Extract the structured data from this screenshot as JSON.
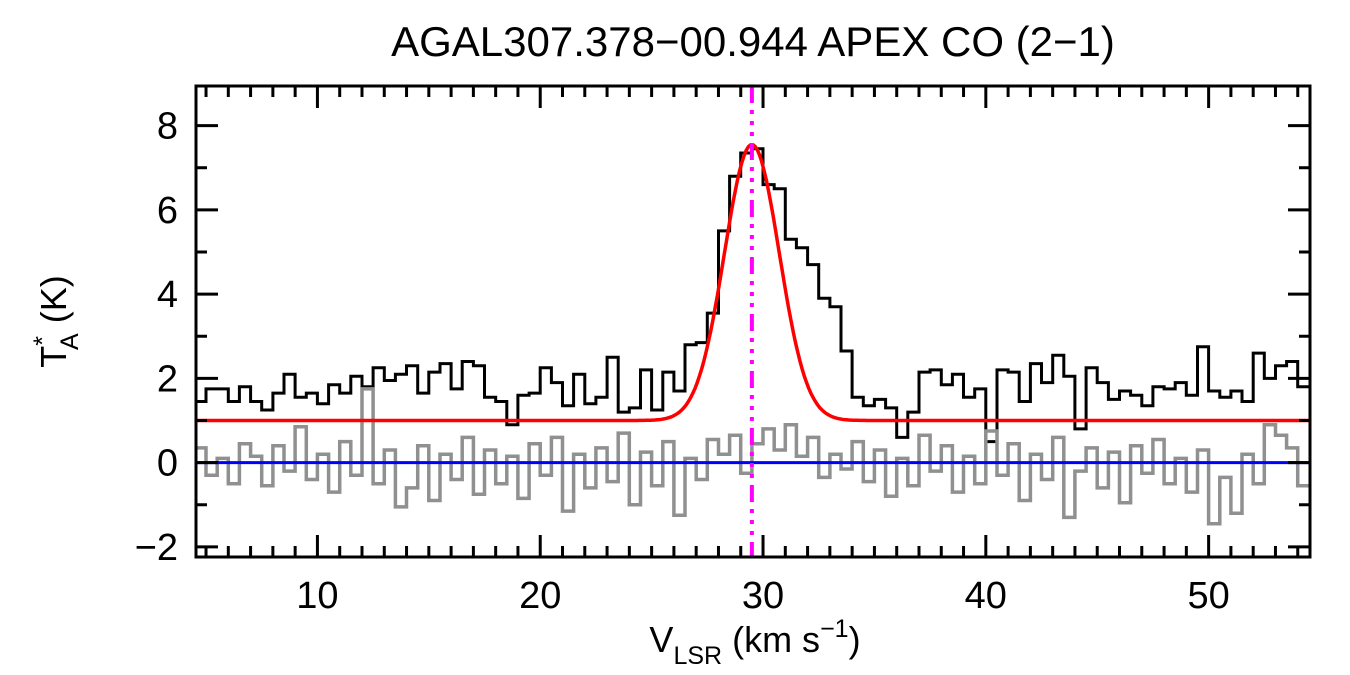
{
  "chart_data": {
    "type": "line",
    "title": "AGAL307.378−00.944  APEX CO (2−1)",
    "xlabel_parts": [
      {
        "t": "V"
      },
      {
        "t": "LSR",
        "sub": true
      },
      {
        "t": " (km s"
      },
      {
        "t": "−1",
        "sup": true
      },
      {
        "t": ")"
      }
    ],
    "ylabel_parts": [
      {
        "t": "T"
      },
      {
        "t": "*",
        "sup": true
      },
      {
        "t": "A",
        "sub": true,
        "dx": -14
      },
      {
        "t": " (K)"
      }
    ],
    "xlim": [
      4.55,
      54.55
    ],
    "ylim": [
      -2.24,
      8.94
    ],
    "x_major_ticks": [
      10,
      20,
      30,
      40,
      50
    ],
    "x_minor_step": 1,
    "y_major_ticks": [
      -2,
      0,
      2,
      4,
      6,
      8
    ],
    "y_minor_step": 1,
    "grid": "off",
    "legend": "none",
    "channel_width_kms": 0.5,
    "series": [
      {
        "name": "co21-spectrum",
        "color": "#000000",
        "style": "histogram",
        "line_width": 3,
        "x_start": 4.75,
        "dx": 0.5,
        "values": [
          1.45,
          1.75,
          1.75,
          1.45,
          1.8,
          1.45,
          1.25,
          1.65,
          2.1,
          1.55,
          1.65,
          1.4,
          1.85,
          1.65,
          2.05,
          1.8,
          2.25,
          1.95,
          2.1,
          2.3,
          1.65,
          2.15,
          2.35,
          1.75,
          2.4,
          2.3,
          1.55,
          1.45,
          0.9,
          1.6,
          1.65,
          2.25,
          1.9,
          1.35,
          2.1,
          1.4,
          1.55,
          2.5,
          1.2,
          1.3,
          2.2,
          1.25,
          2.15,
          1.7,
          2.8,
          2.85,
          3.55,
          5.5,
          6.8,
          7.35,
          7.45,
          6.6,
          6.5,
          5.3,
          5.1,
          4.7,
          3.9,
          3.7,
          2.65,
          1.55,
          1.35,
          1.5,
          1.3,
          0.6,
          1.2,
          2.15,
          2.2,
          1.85,
          2.1,
          1.55,
          1.75,
          0.5,
          2.2,
          2.15,
          1.45,
          2.35,
          1.9,
          2.55,
          2.05,
          0.8,
          2.25,
          1.9,
          1.5,
          1.7,
          1.6,
          1.35,
          1.8,
          1.75,
          1.9,
          1.6,
          2.75,
          1.7,
          1.55,
          1.7,
          1.45,
          2.6,
          2.0,
          2.3,
          2.4,
          1.8
        ]
      },
      {
        "name": "offset-spectrum",
        "color": "#909090",
        "style": "histogram",
        "line_width": 3.5,
        "x_start": 4.75,
        "dx": 0.5,
        "values": [
          0.35,
          -0.3,
          0.1,
          -0.5,
          0.45,
          0.15,
          -0.55,
          0.4,
          -0.2,
          0.85,
          -0.4,
          0.2,
          -0.7,
          0.5,
          -0.3,
          1.75,
          -0.5,
          0.3,
          -1.05,
          -0.6,
          0.4,
          -0.9,
          0.2,
          -0.4,
          0.6,
          -0.75,
          0.3,
          -0.5,
          0.15,
          -0.85,
          0.45,
          -0.3,
          0.6,
          -1.15,
          0.2,
          -0.6,
          0.35,
          -0.45,
          0.7,
          -1.0,
          0.25,
          -0.55,
          0.5,
          -1.25,
          0.1,
          -0.4,
          0.55,
          0.2,
          0.65,
          -0.25,
          0.45,
          0.8,
          0.3,
          0.9,
          0.15,
          0.6,
          -0.35,
          0.2,
          -0.15,
          0.5,
          -0.45,
          0.3,
          -0.8,
          0.1,
          -0.55,
          0.65,
          -0.2,
          0.4,
          -0.7,
          0.15,
          -0.5,
          0.75,
          -0.3,
          0.45,
          -0.9,
          0.2,
          -0.4,
          0.6,
          -1.3,
          -0.2,
          0.35,
          -0.6,
          0.25,
          -0.95,
          0.4,
          -0.25,
          0.55,
          -0.5,
          0.1,
          -0.7,
          0.3,
          -1.45,
          -0.35,
          -1.2,
          0.2,
          -0.5,
          0.9,
          0.65,
          0.35,
          -0.55
        ]
      }
    ],
    "fit": {
      "name": "gaussian-fit",
      "color": "#ff0000",
      "line_width": 3.5,
      "baseline": 1.0,
      "amplitude": 6.55,
      "center": 29.5,
      "fwhm": 2.9
    },
    "baseline_line": {
      "name": "zero-baseline",
      "color": "#0000ff",
      "y": 0,
      "line_width": 3
    },
    "vline": {
      "name": "vlsr-marker",
      "color": "#ff00ff",
      "x": 29.5,
      "style": "dash-dot-dot-dot",
      "line_width": 4
    }
  },
  "colors": {
    "spectrum": "#000000",
    "offset_spectrum": "#909090",
    "fit": "#ff0000",
    "zero_line": "#0000ff",
    "marker_line": "#ff00ff",
    "background": "#ffffff"
  }
}
